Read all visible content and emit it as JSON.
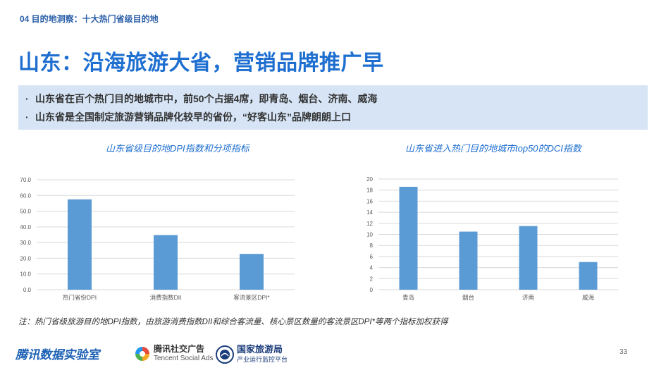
{
  "header": {
    "section_tag": "04 目的地洞察：十大热门省级目的地",
    "title": "山东：沿海旅游大省，营销品牌推广早"
  },
  "summary": {
    "items": [
      "山东省在百个热门目的地城市中，前50个占据4席，即青岛、烟台、济南、威海",
      "山东省是全国制定旅游营销品牌化较早的省份，“好客山东”品牌朗朗上口"
    ]
  },
  "chart_data": [
    {
      "type": "bar",
      "title": "山东省级目的地DPI指数和分项指标",
      "categories": [
        "热门省份DPI",
        "消费指数DII",
        "客流景区DPI*"
      ],
      "values": [
        57.5,
        34.8,
        22.8
      ],
      "ylim": [
        0,
        70
      ],
      "yticks": [
        "0.0",
        "10.0",
        "20.0",
        "30.0",
        "40.0",
        "50.0",
        "60.0",
        "70.0"
      ],
      "grid": true,
      "color": "#5b9bd5"
    },
    {
      "type": "bar",
      "title": "山东省进入热门目的地城市top50的DCI指数",
      "categories": [
        "青岛",
        "烟台",
        "济南",
        "威海"
      ],
      "values": [
        18.6,
        10.5,
        11.5,
        5.0
      ],
      "ylim": [
        0,
        20
      ],
      "yticks": [
        "0",
        "2",
        "4",
        "6",
        "8",
        "10",
        "12",
        "14",
        "16",
        "18",
        "20"
      ],
      "grid": true,
      "color": "#5b9bd5"
    }
  ],
  "note": "注：热门省级旅游目的地DPI指数，由旅游消费指数DII和综合客流量、核心景区数量的客流景区DPI*等两个指标加权获得",
  "footer": {
    "brand": "腾讯数据实验室",
    "partner1_cn": "腾讯社交广告",
    "partner1_en": "Tencent Social Ads",
    "partner2_cn": "国家旅游局",
    "partner2_sub": "产业运行监控平台",
    "page_number": "33"
  },
  "icons": [
    "tencent-social-ads-logo-icon",
    "national-tourism-admin-emblem-icon"
  ]
}
